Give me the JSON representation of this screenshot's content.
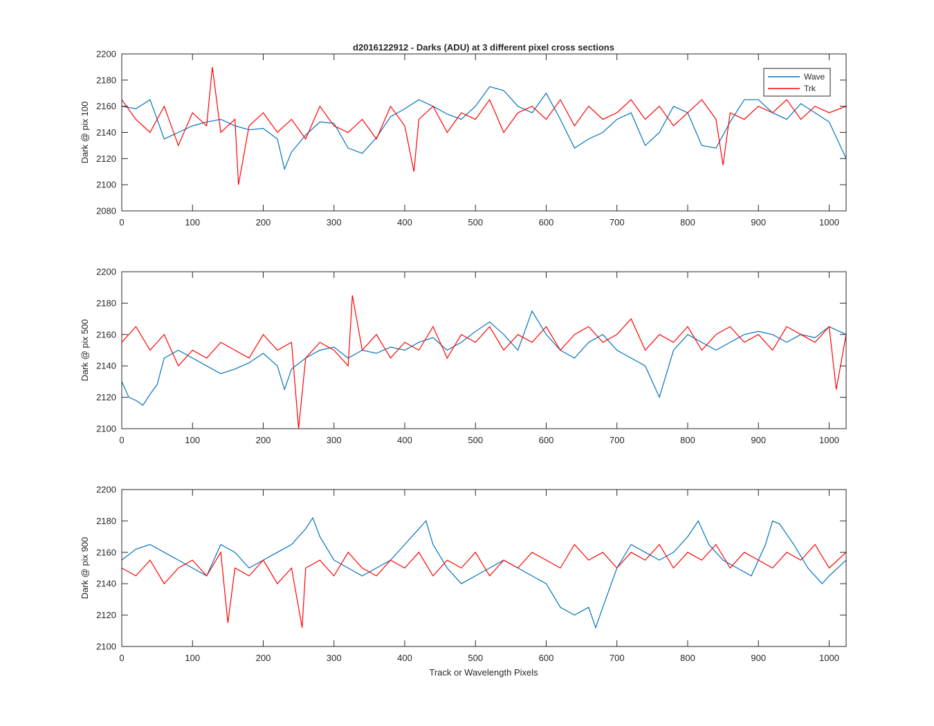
{
  "figure": {
    "title": "d2016122912 - Darks (ADU) at 3 different pixel cross sections",
    "xlabel": "Track or Wavelength Pixels"
  },
  "legend": {
    "position": "top-right of first panel",
    "entries": [
      {
        "label": "Wave",
        "color": "#0072BD"
      },
      {
        "label": "Trk",
        "color": "#FF0000"
      }
    ]
  },
  "chart_data": [
    {
      "type": "line",
      "ylabel": "Dark @ pix 100",
      "xlim": [
        0,
        1024
      ],
      "ylim": [
        2080,
        2200
      ],
      "xticks": [
        0,
        100,
        200,
        300,
        400,
        500,
        600,
        700,
        800,
        900,
        1000
      ],
      "yticks": [
        2080,
        2100,
        2120,
        2140,
        2160,
        2180,
        2200
      ],
      "grid": false,
      "series": [
        {
          "name": "Wave",
          "color": "#0072BD",
          "x": [
            0,
            20,
            40,
            60,
            80,
            100,
            120,
            140,
            160,
            180,
            200,
            220,
            230,
            240,
            260,
            280,
            300,
            320,
            340,
            360,
            380,
            400,
            420,
            440,
            460,
            480,
            500,
            520,
            540,
            560,
            580,
            600,
            620,
            640,
            660,
            680,
            700,
            720,
            740,
            760,
            780,
            800,
            820,
            840,
            860,
            880,
            900,
            920,
            940,
            960,
            980,
            1000,
            1024
          ],
          "y": [
            2160,
            2158,
            2165,
            2135,
            2140,
            2145,
            2148,
            2150,
            2145,
            2142,
            2143,
            2135,
            2112,
            2125,
            2138,
            2148,
            2147,
            2128,
            2124,
            2136,
            2152,
            2158,
            2165,
            2160,
            2154,
            2150,
            2160,
            2175,
            2172,
            2160,
            2155,
            2170,
            2150,
            2128,
            2135,
            2140,
            2150,
            2155,
            2130,
            2140,
            2160,
            2155,
            2130,
            2128,
            2148,
            2165,
            2165,
            2155,
            2150,
            2162,
            2155,
            2148,
            2120
          ]
        },
        {
          "name": "Trk",
          "color": "#FF0000",
          "x": [
            0,
            20,
            40,
            60,
            80,
            100,
            120,
            128,
            140,
            160,
            165,
            180,
            200,
            220,
            240,
            260,
            280,
            300,
            320,
            340,
            360,
            380,
            400,
            413,
            420,
            440,
            460,
            480,
            500,
            520,
            540,
            560,
            580,
            600,
            620,
            640,
            660,
            680,
            700,
            720,
            740,
            760,
            780,
            800,
            820,
            840,
            850,
            860,
            880,
            900,
            920,
            940,
            960,
            980,
            1000,
            1024
          ],
          "y": [
            2165,
            2150,
            2140,
            2160,
            2130,
            2155,
            2145,
            2190,
            2140,
            2150,
            2100,
            2145,
            2155,
            2140,
            2150,
            2135,
            2160,
            2145,
            2140,
            2150,
            2135,
            2160,
            2145,
            2110,
            2150,
            2160,
            2140,
            2155,
            2150,
            2165,
            2140,
            2155,
            2160,
            2150,
            2165,
            2145,
            2160,
            2150,
            2155,
            2165,
            2150,
            2160,
            2145,
            2155,
            2165,
            2150,
            2115,
            2155,
            2150,
            2160,
            2155,
            2165,
            2150,
            2160,
            2155,
            2160
          ]
        }
      ]
    },
    {
      "type": "line",
      "ylabel": "Dark @ pix 500",
      "xlim": [
        0,
        1024
      ],
      "ylim": [
        2100,
        2200
      ],
      "xticks": [
        0,
        100,
        200,
        300,
        400,
        500,
        600,
        700,
        800,
        900,
        1000
      ],
      "yticks": [
        2100,
        2120,
        2140,
        2160,
        2180,
        2200
      ],
      "grid": false,
      "series": [
        {
          "name": "Wave",
          "color": "#0072BD",
          "x": [
            0,
            10,
            20,
            30,
            40,
            50,
            60,
            80,
            100,
            120,
            140,
            160,
            180,
            200,
            220,
            230,
            240,
            260,
            280,
            300,
            320,
            340,
            360,
            380,
            400,
            420,
            440,
            460,
            480,
            500,
            520,
            540,
            560,
            580,
            600,
            620,
            640,
            660,
            680,
            700,
            720,
            740,
            760,
            780,
            800,
            820,
            840,
            860,
            880,
            900,
            920,
            940,
            960,
            980,
            1000,
            1024
          ],
          "y": [
            2130,
            2120,
            2118,
            2115,
            2122,
            2128,
            2145,
            2150,
            2145,
            2140,
            2135,
            2138,
            2142,
            2148,
            2140,
            2125,
            2138,
            2145,
            2150,
            2152,
            2145,
            2150,
            2148,
            2152,
            2150,
            2155,
            2158,
            2150,
            2155,
            2162,
            2168,
            2160,
            2150,
            2175,
            2160,
            2150,
            2145,
            2155,
            2160,
            2150,
            2145,
            2140,
            2120,
            2150,
            2160,
            2155,
            2150,
            2155,
            2160,
            2162,
            2160,
            2155,
            2160,
            2158,
            2165,
            2160
          ]
        },
        {
          "name": "Trk",
          "color": "#FF0000",
          "x": [
            0,
            20,
            40,
            60,
            80,
            100,
            120,
            140,
            160,
            180,
            200,
            220,
            240,
            250,
            260,
            280,
            300,
            320,
            326,
            340,
            360,
            380,
            400,
            420,
            440,
            460,
            480,
            500,
            520,
            540,
            560,
            580,
            600,
            620,
            640,
            660,
            680,
            700,
            720,
            740,
            760,
            780,
            800,
            820,
            840,
            860,
            880,
            900,
            920,
            940,
            960,
            980,
            1000,
            1010,
            1024
          ],
          "y": [
            2155,
            2165,
            2150,
            2160,
            2140,
            2150,
            2145,
            2155,
            2150,
            2145,
            2160,
            2150,
            2155,
            2100,
            2145,
            2155,
            2150,
            2140,
            2185,
            2150,
            2160,
            2145,
            2155,
            2150,
            2165,
            2145,
            2160,
            2155,
            2165,
            2150,
            2160,
            2155,
            2165,
            2150,
            2160,
            2165,
            2155,
            2160,
            2170,
            2150,
            2160,
            2155,
            2165,
            2150,
            2160,
            2165,
            2155,
            2160,
            2150,
            2165,
            2160,
            2155,
            2165,
            2125,
            2160
          ]
        }
      ]
    },
    {
      "type": "line",
      "ylabel": "Dark @ pix 900",
      "xlim": [
        0,
        1024
      ],
      "ylim": [
        2100,
        2200
      ],
      "xticks": [
        0,
        100,
        200,
        300,
        400,
        500,
        600,
        700,
        800,
        900,
        1000
      ],
      "yticks": [
        2100,
        2120,
        2140,
        2160,
        2180,
        2200
      ],
      "grid": false,
      "series": [
        {
          "name": "Wave",
          "color": "#0072BD",
          "x": [
            0,
            20,
            40,
            60,
            80,
            100,
            120,
            140,
            160,
            180,
            200,
            220,
            240,
            260,
            270,
            280,
            300,
            320,
            340,
            360,
            380,
            400,
            420,
            430,
            440,
            460,
            480,
            500,
            520,
            540,
            560,
            580,
            600,
            620,
            640,
            660,
            670,
            680,
            700,
            720,
            740,
            760,
            780,
            800,
            815,
            830,
            850,
            870,
            890,
            910,
            920,
            930,
            950,
            970,
            990,
            1000,
            1024
          ],
          "y": [
            2155,
            2162,
            2165,
            2160,
            2155,
            2150,
            2145,
            2165,
            2160,
            2150,
            2155,
            2160,
            2165,
            2175,
            2182,
            2170,
            2155,
            2150,
            2145,
            2150,
            2155,
            2165,
            2175,
            2180,
            2165,
            2150,
            2140,
            2145,
            2150,
            2155,
            2150,
            2145,
            2140,
            2125,
            2120,
            2125,
            2112,
            2125,
            2150,
            2165,
            2160,
            2155,
            2160,
            2170,
            2180,
            2165,
            2155,
            2150,
            2145,
            2165,
            2180,
            2178,
            2165,
            2150,
            2140,
            2145,
            2155
          ]
        },
        {
          "name": "Trk",
          "color": "#FF0000",
          "x": [
            0,
            20,
            40,
            60,
            80,
            100,
            120,
            140,
            150,
            160,
            180,
            200,
            220,
            240,
            255,
            260,
            280,
            300,
            320,
            340,
            360,
            380,
            400,
            420,
            440,
            460,
            480,
            500,
            520,
            540,
            560,
            580,
            600,
            620,
            640,
            660,
            680,
            700,
            720,
            740,
            760,
            780,
            800,
            820,
            840,
            860,
            880,
            900,
            920,
            940,
            960,
            980,
            1000,
            1024
          ],
          "y": [
            2150,
            2145,
            2155,
            2140,
            2150,
            2155,
            2145,
            2160,
            2115,
            2150,
            2145,
            2155,
            2140,
            2150,
            2112,
            2150,
            2155,
            2145,
            2160,
            2150,
            2145,
            2155,
            2150,
            2160,
            2145,
            2155,
            2150,
            2160,
            2145,
            2155,
            2150,
            2160,
            2155,
            2150,
            2165,
            2155,
            2160,
            2150,
            2160,
            2155,
            2165,
            2150,
            2160,
            2155,
            2165,
            2150,
            2160,
            2155,
            2150,
            2160,
            2155,
            2165,
            2150,
            2160
          ]
        }
      ]
    }
  ]
}
